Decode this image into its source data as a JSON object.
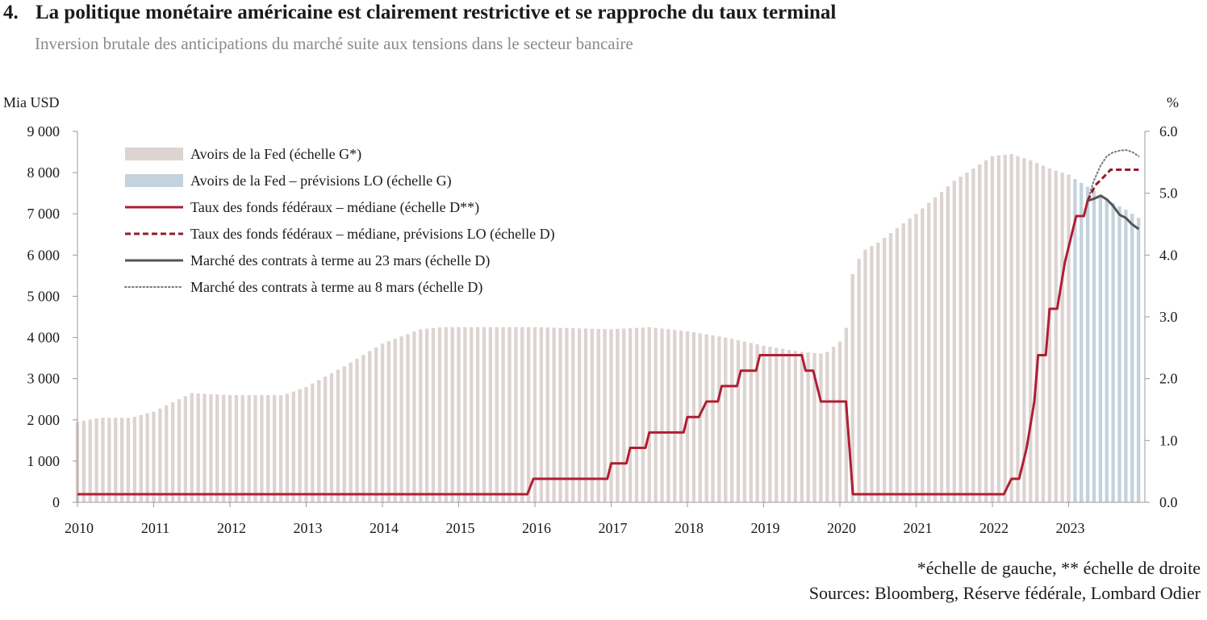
{
  "header": {
    "number": "4.",
    "title": "La politique monétaire américaine est clairement restrictive et se rapproche du taux terminal",
    "subtitle": "Inversion brutale des anticipations du marché suite aux tensions dans le secteur bancaire"
  },
  "footer": {
    "scale_note": "*échelle de gauche, ** échelle de droite",
    "sources": "Sources: Bloomberg, Réserve fédérale, Lombard Odier"
  },
  "colors": {
    "fed_assets": "#ddd3d1",
    "fed_assets_forecast": "#c3d2dd",
    "fed_funds": "#b01e32",
    "fed_funds_forecast": "#9a1a2a",
    "futures_mar23": "#555555",
    "futures_mar8": "#777777",
    "axis": "#999999"
  },
  "chart_data": {
    "type": "bar+line",
    "y_left": {
      "label": "Mia USD",
      "lim": [
        0,
        9000
      ],
      "ticks": [
        "0",
        "1 000",
        "2 000",
        "3 000",
        "4 000",
        "5 000",
        "6 000",
        "7 000",
        "8 000",
        "9 000"
      ]
    },
    "y_right": {
      "label": "%",
      "lim": [
        0,
        6
      ],
      "ticks": [
        "0.0",
        "1.0",
        "2.0",
        "3.0",
        "4.0",
        "5.0",
        "6.0"
      ]
    },
    "x_ticks": [
      "2010",
      "2011",
      "2012",
      "2013",
      "2014",
      "2015",
      "2016",
      "2017",
      "2018",
      "2019",
      "2020",
      "2021",
      "2022",
      "2023"
    ],
    "x_range": [
      2010.0,
      2024.0
    ],
    "legend": {
      "position": "top-left",
      "entries": [
        "Avoirs de la Fed (échelle G*)",
        "Avoirs de la Fed – prévisions LO (échelle G)",
        "Taux des fonds fédéraux – médiane (échelle D**)",
        "Taux des fonds fédéraux – médiane, prévisions LO (échelle D)",
        "Marché des contrats à terme au 23 mars (échelle D)",
        "Marché des contrats à terme au 8 mars (échelle D)"
      ]
    },
    "fed_assets": {
      "name": "Avoirs de la Fed (échelle G*)",
      "points": [
        [
          2010.0,
          1950
        ],
        [
          2010.3,
          2050
        ],
        [
          2010.7,
          2050
        ],
        [
          2011.0,
          2200
        ],
        [
          2011.5,
          2650
        ],
        [
          2012.0,
          2600
        ],
        [
          2012.7,
          2600
        ],
        [
          2013.0,
          2800
        ],
        [
          2013.5,
          3300
        ],
        [
          2014.0,
          3850
        ],
        [
          2014.5,
          4200
        ],
        [
          2014.8,
          4250
        ],
        [
          2016.0,
          4250
        ],
        [
          2017.0,
          4200
        ],
        [
          2017.5,
          4250
        ],
        [
          2018.0,
          4150
        ],
        [
          2018.5,
          4000
        ],
        [
          2019.0,
          3800
        ],
        [
          2019.5,
          3650
        ],
        [
          2019.8,
          3600
        ],
        [
          2020.0,
          3900
        ],
        [
          2020.1,
          4300
        ],
        [
          2020.17,
          5600
        ],
        [
          2020.3,
          6100
        ],
        [
          2020.5,
          6300
        ],
        [
          2021.0,
          7000
        ],
        [
          2021.5,
          7800
        ],
        [
          2022.0,
          8400
        ],
        [
          2022.25,
          8450
        ],
        [
          2022.5,
          8300
        ],
        [
          2022.75,
          8100
        ],
        [
          2023.0,
          7950
        ],
        [
          2023.08,
          7850
        ]
      ]
    },
    "fed_assets_forecast": {
      "name": "Avoirs de la Fed – prévisions LO (échelle G)",
      "points": [
        [
          2023.08,
          7850
        ],
        [
          2023.3,
          7600
        ],
        [
          2023.5,
          7350
        ],
        [
          2023.75,
          7100
        ],
        [
          2023.92,
          6900
        ]
      ]
    },
    "fed_funds": {
      "name": "Taux des fonds fédéraux – médiane (échelle D**)",
      "points": [
        [
          2010.0,
          0.13
        ],
        [
          2015.9,
          0.13
        ],
        [
          2015.98,
          0.38
        ],
        [
          2016.95,
          0.38
        ],
        [
          2017.0,
          0.63
        ],
        [
          2017.2,
          0.63
        ],
        [
          2017.25,
          0.88
        ],
        [
          2017.45,
          0.88
        ],
        [
          2017.5,
          1.13
        ],
        [
          2017.95,
          1.13
        ],
        [
          2018.0,
          1.38
        ],
        [
          2018.15,
          1.38
        ],
        [
          2018.25,
          1.63
        ],
        [
          2018.4,
          1.63
        ],
        [
          2018.45,
          1.88
        ],
        [
          2018.65,
          1.88
        ],
        [
          2018.7,
          2.13
        ],
        [
          2018.9,
          2.13
        ],
        [
          2018.95,
          2.38
        ],
        [
          2019.5,
          2.38
        ],
        [
          2019.55,
          2.13
        ],
        [
          2019.65,
          2.13
        ],
        [
          2019.75,
          1.63
        ],
        [
          2020.08,
          1.63
        ],
        [
          2020.17,
          0.13
        ],
        [
          2022.15,
          0.13
        ],
        [
          2022.25,
          0.38
        ],
        [
          2022.35,
          0.38
        ],
        [
          2022.45,
          0.88
        ],
        [
          2022.55,
          1.63
        ],
        [
          2022.6,
          2.38
        ],
        [
          2022.7,
          2.38
        ],
        [
          2022.75,
          3.13
        ],
        [
          2022.85,
          3.13
        ],
        [
          2022.95,
          3.88
        ],
        [
          2023.05,
          4.38
        ],
        [
          2023.1,
          4.63
        ],
        [
          2023.2,
          4.63
        ],
        [
          2023.25,
          4.88
        ]
      ]
    },
    "fed_funds_forecast": {
      "name": "Taux des fonds fédéraux – médiane, prévisions LO (échelle D)",
      "points": [
        [
          2023.25,
          4.88
        ],
        [
          2023.35,
          5.13
        ],
        [
          2023.45,
          5.25
        ],
        [
          2023.55,
          5.38
        ],
        [
          2023.92,
          5.38
        ]
      ]
    },
    "futures_mar23": {
      "name": "Marché des contrats à terme au 23 mars (échelle D)",
      "points": [
        [
          2023.25,
          4.88
        ],
        [
          2023.33,
          4.91
        ],
        [
          2023.42,
          4.96
        ],
        [
          2023.5,
          4.9
        ],
        [
          2023.58,
          4.8
        ],
        [
          2023.67,
          4.65
        ],
        [
          2023.75,
          4.6
        ],
        [
          2023.83,
          4.5
        ],
        [
          2023.92,
          4.42
        ]
      ]
    },
    "futures_mar8": {
      "name": "Marché des contrats à terme au 8 mars (échelle D)",
      "points": [
        [
          2023.25,
          4.88
        ],
        [
          2023.33,
          5.2
        ],
        [
          2023.42,
          5.45
        ],
        [
          2023.5,
          5.6
        ],
        [
          2023.58,
          5.66
        ],
        [
          2023.67,
          5.69
        ],
        [
          2023.75,
          5.7
        ],
        [
          2023.83,
          5.67
        ],
        [
          2023.92,
          5.6
        ]
      ]
    }
  }
}
